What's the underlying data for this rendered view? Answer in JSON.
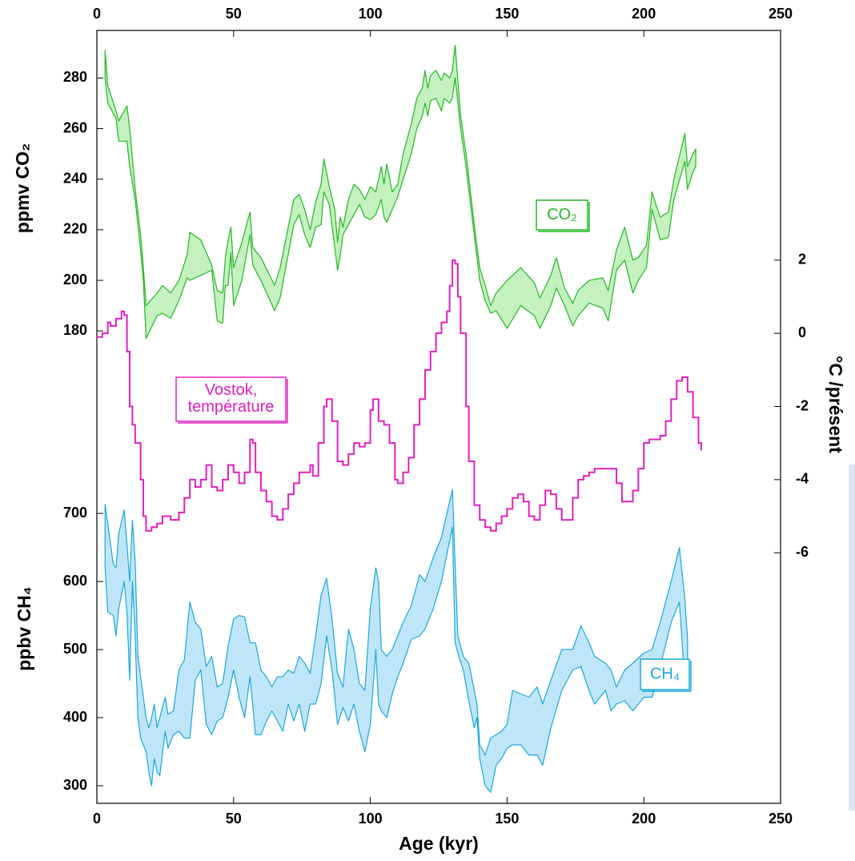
{
  "chart_data": [
    {
      "type": "band",
      "ylabel": "ppmv CO₂",
      "label": "CO₂",
      "color": "#22b822",
      "fill": "#c5f0c0",
      "xlabel": "Age (kyr)",
      "xlim": [
        0,
        250
      ],
      "xticks": [
        0,
        50,
        100,
        150,
        200,
        250
      ],
      "ylim": [
        175,
        295
      ],
      "yticks": [
        180,
        200,
        220,
        240,
        260,
        280
      ],
      "x": [
        3,
        4,
        7,
        8,
        9,
        11,
        12,
        14,
        16,
        17,
        18,
        22,
        24,
        27,
        30,
        33,
        34,
        38,
        42,
        44,
        46,
        47,
        48,
        49,
        50,
        53,
        56,
        57,
        60,
        65,
        67,
        72,
        74,
        76,
        78,
        80,
        82,
        83,
        85,
        87,
        88,
        89,
        90,
        92,
        94,
        96,
        98,
        100,
        102,
        104,
        105,
        106,
        108,
        110,
        112,
        115,
        117,
        119,
        120,
        121,
        122,
        124,
        126,
        127,
        129,
        130,
        131,
        133,
        135,
        138,
        140,
        142,
        144,
        146,
        150,
        155,
        160,
        162,
        166,
        168,
        171,
        174,
        176,
        180,
        185,
        187,
        190,
        193,
        196,
        198,
        201,
        203,
        205,
        206,
        209,
        211,
        215,
        216,
        218,
        219
      ],
      "upper": [
        291,
        277,
        267,
        263,
        265,
        269,
        260,
        236,
        218,
        205,
        190,
        195,
        198,
        195,
        200,
        210,
        219,
        216,
        206,
        196,
        195,
        209,
        216,
        221,
        205,
        215,
        227,
        213,
        209,
        198,
        205,
        232,
        234,
        228,
        220,
        231,
        238,
        248,
        237,
        228,
        215,
        225,
        221,
        232,
        238,
        236,
        232,
        237,
        235,
        245,
        238,
        246,
        235,
        238,
        250,
        262,
        272,
        276,
        283,
        276,
        281,
        283,
        279,
        282,
        280,
        283,
        293,
        265,
        250,
        222,
        205,
        198,
        190,
        195,
        200,
        205,
        199,
        193,
        202,
        209,
        197,
        191,
        196,
        200,
        201,
        196,
        212,
        221,
        208,
        209,
        214,
        235,
        228,
        225,
        227,
        240,
        258,
        245,
        250,
        252
      ],
      "lower": [
        280,
        270,
        264,
        255,
        255,
        255,
        245,
        232,
        212,
        200,
        177,
        186,
        187,
        185,
        192,
        201,
        200,
        202,
        204,
        184,
        183,
        198,
        198,
        211,
        190,
        200,
        218,
        206,
        200,
        188,
        193,
        222,
        226,
        218,
        213,
        221,
        222,
        235,
        230,
        213,
        204,
        210,
        218,
        222,
        226,
        230,
        225,
        224,
        226,
        232,
        225,
        223,
        228,
        233,
        240,
        250,
        260,
        265,
        270,
        265,
        271,
        272,
        267,
        272,
        270,
        272,
        280,
        260,
        245,
        218,
        200,
        192,
        187,
        188,
        181,
        190,
        186,
        181,
        190,
        197,
        190,
        182,
        186,
        191,
        189,
        184,
        204,
        208,
        195,
        200,
        205,
        228,
        220,
        216,
        217,
        232,
        247,
        236,
        243,
        245
      ]
    },
    {
      "type": "line",
      "label": "Vostok,\ntempérature",
      "axis_label": "°C /présent",
      "color": "#e020c0",
      "axis": "y2",
      "y2lim": [
        -6.5,
        2.5
      ],
      "y2ticks": [
        2,
        0,
        -2,
        -4,
        -6
      ],
      "x": [
        0,
        2,
        4,
        5,
        7,
        9,
        10,
        11,
        12,
        13,
        14,
        16,
        17,
        18,
        20,
        22,
        24,
        27,
        30,
        32,
        34,
        36,
        38,
        40,
        41,
        42,
        44,
        46,
        48,
        50,
        52,
        54,
        56,
        57,
        58,
        60,
        62,
        64,
        66,
        68,
        70,
        72,
        74,
        76,
        78,
        79,
        81,
        83,
        84,
        86,
        88,
        90,
        92,
        94,
        96,
        98,
        100,
        101,
        103,
        105,
        107,
        109,
        110,
        112,
        114,
        116,
        118,
        120,
        122,
        124,
        126,
        128,
        129,
        130,
        131,
        132,
        133,
        135,
        136,
        138,
        140,
        142,
        144,
        146,
        148,
        150,
        152,
        154,
        156,
        158,
        160,
        162,
        164,
        166,
        168,
        170,
        172,
        174,
        176,
        178,
        180,
        182,
        184,
        186,
        188,
        190,
        192,
        194,
        196,
        198,
        200,
        202,
        204,
        206,
        208,
        210,
        212,
        214,
        216,
        218,
        220,
        221
      ],
      "values": [
        -0.1,
        0,
        0.3,
        0.2,
        0.4,
        0.6,
        0.5,
        -0.5,
        -2,
        -2.5,
        -3,
        -4,
        -5,
        -5.4,
        -5.3,
        -5.2,
        -5,
        -5.1,
        -4.9,
        -4.5,
        -4,
        -4.2,
        -4,
        -3.6,
        -3.6,
        -4.2,
        -4.3,
        -4,
        -3.6,
        -3.8,
        -4.1,
        -3.8,
        -2.9,
        -3,
        -3.8,
        -4.3,
        -4.6,
        -5,
        -5.1,
        -4.8,
        -4.4,
        -4.1,
        -3.8,
        -3.8,
        -3.6,
        -3.9,
        -3,
        -2,
        -1.8,
        -2.4,
        -3.5,
        -3.6,
        -3.3,
        -3,
        -3.1,
        -3,
        -2.1,
        -1.8,
        -2.4,
        -2.5,
        -3,
        -4,
        -4.1,
        -3.8,
        -3.4,
        -2.5,
        -1.8,
        -1,
        -0.5,
        0,
        0.3,
        0.6,
        1.3,
        2,
        1.9,
        1,
        0,
        -2,
        -3.5,
        -4.7,
        -5.1,
        -5.3,
        -5.4,
        -5.2,
        -5,
        -4.8,
        -4.5,
        -4.4,
        -4.6,
        -5,
        -5.1,
        -4.7,
        -4.3,
        -4.4,
        -4.8,
        -5.1,
        -5.1,
        -4.5,
        -4,
        -3.9,
        -3.8,
        -3.7,
        -3.7,
        -3.7,
        -3.7,
        -4.1,
        -4.6,
        -4.6,
        -4.3,
        -3.7,
        -3,
        -2.9,
        -2.9,
        -2.8,
        -2.4,
        -1.8,
        -1.3,
        -1.2,
        -1.6,
        -2.3,
        -3,
        -3.2
      ]
    },
    {
      "type": "band",
      "ylabel": "ppbv CH₄",
      "label": "CH₄",
      "color": "#1aa6e0",
      "fill": "#bfe6f8",
      "ylim": [
        290,
        740
      ],
      "yticks": [
        300,
        400,
        500,
        600,
        700
      ],
      "x": [
        3,
        4,
        6,
        7,
        8,
        10,
        11,
        12,
        13,
        14,
        15,
        16,
        18,
        19,
        20,
        21,
        22,
        23,
        25,
        26,
        28,
        30,
        32,
        34,
        36,
        38,
        40,
        42,
        44,
        46,
        48,
        50,
        52,
        54,
        56,
        58,
        60,
        62,
        64,
        66,
        68,
        70,
        72,
        74,
        76,
        78,
        80,
        82,
        84,
        86,
        88,
        90,
        92,
        94,
        96,
        98,
        100,
        102,
        103,
        104,
        106,
        108,
        110,
        112,
        115,
        118,
        120,
        123,
        126,
        128,
        130,
        131,
        132,
        134,
        136,
        138,
        139,
        140,
        142,
        144,
        146,
        148,
        150,
        152,
        155,
        158,
        161,
        163,
        166,
        170,
        174,
        177,
        180,
        182,
        186,
        188,
        190,
        193,
        196,
        200,
        203,
        206,
        210,
        213,
        215,
        216
      ],
      "lower": [
        622,
        555,
        550,
        520,
        560,
        600,
        555,
        455,
        600,
        520,
        400,
        370,
        350,
        320,
        300,
        340,
        320,
        315,
        380,
        355,
        375,
        380,
        370,
        370,
        455,
        470,
        390,
        375,
        395,
        400,
        430,
        470,
        430,
        400,
        460,
        375,
        375,
        395,
        410,
        395,
        380,
        420,
        395,
        420,
        380,
        420,
        420,
        450,
        520,
        470,
        390,
        415,
        395,
        420,
        380,
        350,
        390,
        500,
        420,
        410,
        400,
        435,
        460,
        480,
        515,
        520,
        530,
        560,
        600,
        640,
        680,
        510,
        495,
        470,
        425,
        385,
        400,
        340,
        300,
        290,
        330,
        340,
        355,
        360,
        360,
        345,
        345,
        330,
        385,
        440,
        470,
        475,
        440,
        420,
        440,
        410,
        420,
        425,
        410,
        430,
        430,
        475,
        540,
        570,
        450,
        445
      ],
      "upper": [
        713,
        685,
        625,
        620,
        670,
        705,
        655,
        600,
        690,
        630,
        490,
        460,
        400,
        385,
        400,
        420,
        385,
        400,
        430,
        405,
        410,
        470,
        485,
        570,
        540,
        530,
        475,
        490,
        445,
        450,
        505,
        545,
        550,
        548,
        510,
        510,
        470,
        460,
        445,
        460,
        460,
        470,
        465,
        490,
        480,
        465,
        520,
        580,
        605,
        545,
        465,
        445,
        530,
        500,
        450,
        440,
        560,
        620,
        600,
        500,
        490,
        500,
        520,
        540,
        565,
        610,
        600,
        635,
        665,
        700,
        735,
        625,
        520,
        490,
        480,
        440,
        420,
        360,
        345,
        370,
        375,
        380,
        390,
        440,
        435,
        430,
        445,
        420,
        455,
        500,
        500,
        535,
        510,
        490,
        480,
        470,
        445,
        470,
        480,
        495,
        500,
        540,
        600,
        650,
        575,
        515
      ]
    }
  ]
}
